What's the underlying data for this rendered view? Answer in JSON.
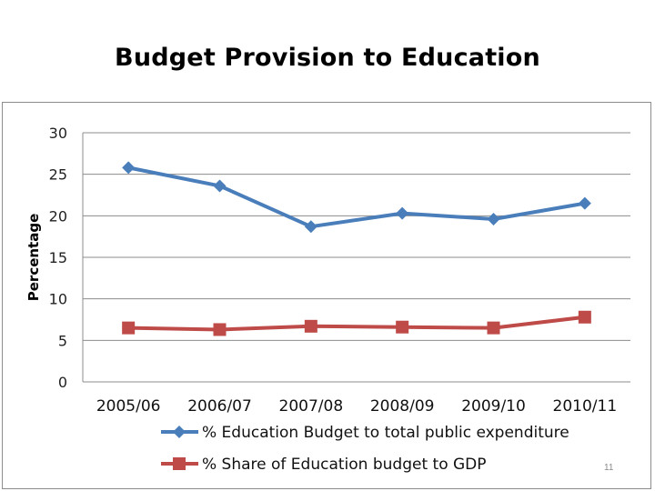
{
  "slide": {
    "title": "Budget Provision to Education",
    "page_number": "11"
  },
  "chart_data": {
    "type": "line",
    "title": "",
    "xlabel": "",
    "ylabel": "Percentage",
    "ylim": [
      0,
      30
    ],
    "yticks": [
      0,
      5,
      10,
      15,
      20,
      25,
      30
    ],
    "grid": true,
    "legend_position": "bottom",
    "categories": [
      "2005/06",
      "2006/07",
      "2007/08",
      "2008/09",
      "2009/10",
      "2010/11"
    ],
    "series": [
      {
        "name": "% Education Budget to total public expenditure",
        "color": "#4a7ebb",
        "marker": "diamond",
        "values": [
          25.8,
          23.6,
          18.7,
          20.3,
          19.6,
          21.5
        ]
      },
      {
        "name": "% Share of Education budget to GDP",
        "color": "#be4b48",
        "marker": "square",
        "values": [
          6.5,
          6.3,
          6.7,
          6.6,
          6.5,
          7.8
        ]
      }
    ]
  }
}
